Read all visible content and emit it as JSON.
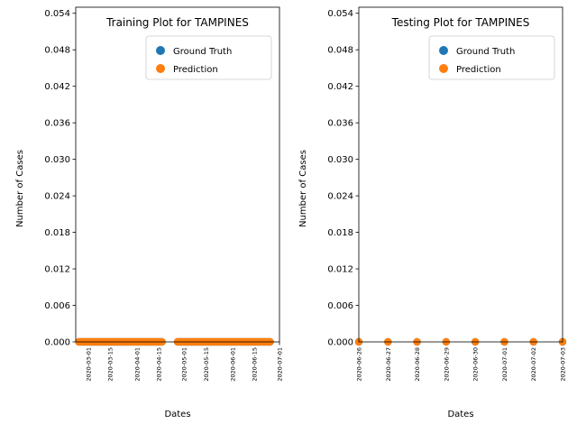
{
  "chart_data": [
    {
      "type": "scatter",
      "title": "Training Plot for TAMPINES",
      "xlabel": "Dates",
      "ylabel": "Number of Cases",
      "x_axis": "date",
      "xlim": [
        "2020-02-22",
        "2020-07-01"
      ],
      "x_ticks": [
        "2020-03-01",
        "2020-03-15",
        "2020-04-01",
        "2020-04-15",
        "2020-05-01",
        "2020-05-15",
        "2020-06-01",
        "2020-06-15",
        "2020-07-01"
      ],
      "ylim": [
        0,
        0.055
      ],
      "y_ticks": [
        "0.000",
        "0.006",
        "0.012",
        "0.018",
        "0.024",
        "0.030",
        "0.036",
        "0.042",
        "0.048",
        "0.054"
      ],
      "grid": false,
      "legend_position": "top-right",
      "date_ranges": [
        [
          "2020-02-24",
          "2020-04-17"
        ],
        [
          "2020-04-27",
          "2020-06-25"
        ]
      ],
      "series": [
        {
          "name": "Ground Truth",
          "color": "#1f77b4",
          "value": 0
        },
        {
          "name": "Prediction",
          "color": "#ff7f0e",
          "value": 0
        }
      ]
    },
    {
      "type": "scatter",
      "title": "Testing Plot for TAMPINES",
      "xlabel": "Dates",
      "ylabel": "Number of Cases",
      "x_axis": "date",
      "xlim": [
        "2020-06-26",
        "2020-07-03"
      ],
      "x_ticks": [
        "2020-06-26",
        "2020-06-27",
        "2020-06-28",
        "2020-06-29",
        "2020-06-30",
        "2020-07-01",
        "2020-07-02",
        "2020-07-03"
      ],
      "ylim": [
        0,
        0.055
      ],
      "y_ticks": [
        "0.000",
        "0.006",
        "0.012",
        "0.018",
        "0.024",
        "0.030",
        "0.036",
        "0.042",
        "0.048",
        "0.054"
      ],
      "grid": false,
      "legend_position": "top-right",
      "date_ranges": [
        [
          "2020-06-26",
          "2020-07-03"
        ]
      ],
      "series": [
        {
          "name": "Ground Truth",
          "color": "#1f77b4",
          "value": 0
        },
        {
          "name": "Prediction",
          "color": "#ff7f0e",
          "value": 0
        }
      ]
    }
  ]
}
